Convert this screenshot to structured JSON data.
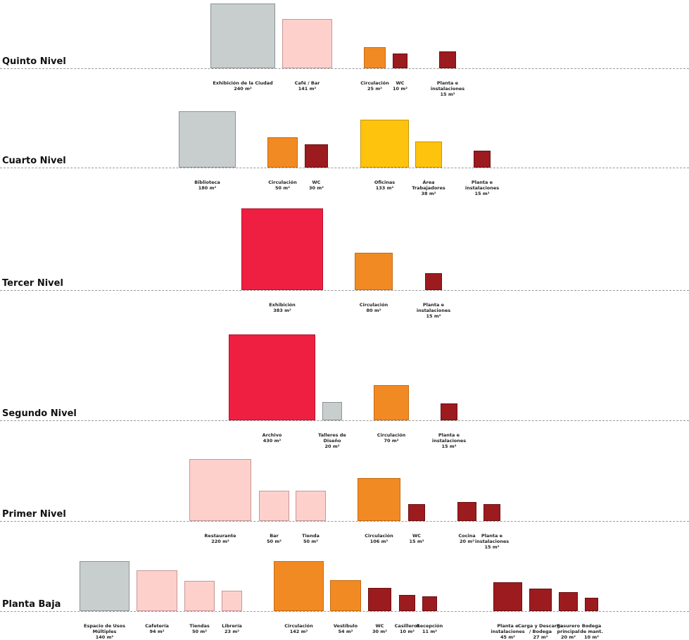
{
  "levels": [
    {
      "id": "quinto",
      "title": "Quinto Nivel",
      "spaces": [
        {
          "name": "Exhibición de la Ciudad",
          "area": "240 m²",
          "color": "grey"
        },
        {
          "name": "Café / Bar",
          "area": "141 m²",
          "color": "pink"
        },
        {
          "name": "Circulación",
          "area": "25 m²",
          "color": "orange"
        },
        {
          "name": "WC",
          "area": "10 m²",
          "color": "dred"
        },
        {
          "name": "Planta e instalaciones",
          "area": "15 m²",
          "color": "dred"
        }
      ]
    },
    {
      "id": "cuarto",
      "title": "Cuarto Nivel",
      "spaces": [
        {
          "name": "Biblioteca",
          "area": "180 m²",
          "color": "grey"
        },
        {
          "name": "Circulación",
          "area": "50 m²",
          "color": "orange"
        },
        {
          "name": "WC",
          "area": "30 m²",
          "color": "dred"
        },
        {
          "name": "Oficinas",
          "area": "133 m²",
          "color": "yellow"
        },
        {
          "name": "Área Trabajadores",
          "area": "38 m²",
          "color": "yellow"
        },
        {
          "name": "Planta e instalaciones",
          "area": "15 m²",
          "color": "dred"
        }
      ]
    },
    {
      "id": "tercer",
      "title": "Tercer Nivel",
      "spaces": [
        {
          "name": "Exhibición",
          "area": "383 m²",
          "color": "red"
        },
        {
          "name": "Circulación",
          "area": "80 m²",
          "color": "orange"
        },
        {
          "name": "Planta e instalaciones",
          "area": "15 m²",
          "color": "dred"
        }
      ]
    },
    {
      "id": "segundo",
      "title": "Segundo Nivel",
      "spaces": [
        {
          "name": "Archivo",
          "area": "430 m²",
          "color": "red"
        },
        {
          "name": "Talleres de Diseño",
          "area": "20 m²",
          "color": "grey"
        },
        {
          "name": "Circulación",
          "area": "70 m²",
          "color": "orange"
        },
        {
          "name": "Planta e instalaciones",
          "area": "15 m²",
          "color": "dred"
        }
      ]
    },
    {
      "id": "primer",
      "title": "Primer Nivel",
      "spaces": [
        {
          "name": "Restaurante",
          "area": "220 m²",
          "color": "pink"
        },
        {
          "name": "Bar",
          "area": "50 m²",
          "color": "pink"
        },
        {
          "name": "Tienda",
          "area": "50 m²",
          "color": "pink"
        },
        {
          "name": "Circulación",
          "area": "106 m²",
          "color": "orange"
        },
        {
          "name": "WC",
          "area": "15 m²",
          "color": "dred"
        },
        {
          "name": "Cocina",
          "area": "20 m²",
          "color": "dred"
        },
        {
          "name": "Planta e instalaciones",
          "area": "15 m²",
          "color": "dred"
        }
      ]
    },
    {
      "id": "planta-baja",
      "title": "Planta Baja",
      "spaces": [
        {
          "name": "Espacio de Usos Múltiples",
          "area": "140 m²",
          "color": "grey"
        },
        {
          "name": "Cafetería",
          "area": "94 m²",
          "color": "pink"
        },
        {
          "name": "Tiendas",
          "area": "50 m²",
          "color": "pink"
        },
        {
          "name": "Librería",
          "area": "23 m²",
          "color": "pink"
        },
        {
          "name": "Circulación",
          "area": "142 m²",
          "color": "orange"
        },
        {
          "name": "Vestíbulo",
          "area": "54 m²",
          "color": "orange"
        },
        {
          "name": "WC",
          "area": "30 m²",
          "color": "dred"
        },
        {
          "name": "Casilleros",
          "area": "10 m²",
          "color": "dred"
        },
        {
          "name": "Recepción",
          "area": "11 m²",
          "color": "dred"
        },
        {
          "name": "Planta e instalaciones",
          "area": "45 m²",
          "color": "dred"
        },
        {
          "name": "Carga y Descarga / Bodega",
          "area": "27 m²",
          "color": "dred"
        },
        {
          "name": "Basurero principal",
          "area": "20 m²",
          "color": "dred"
        },
        {
          "name": "Bodega de mant.",
          "area": "10 m²",
          "color": "dred"
        }
      ]
    }
  ]
}
